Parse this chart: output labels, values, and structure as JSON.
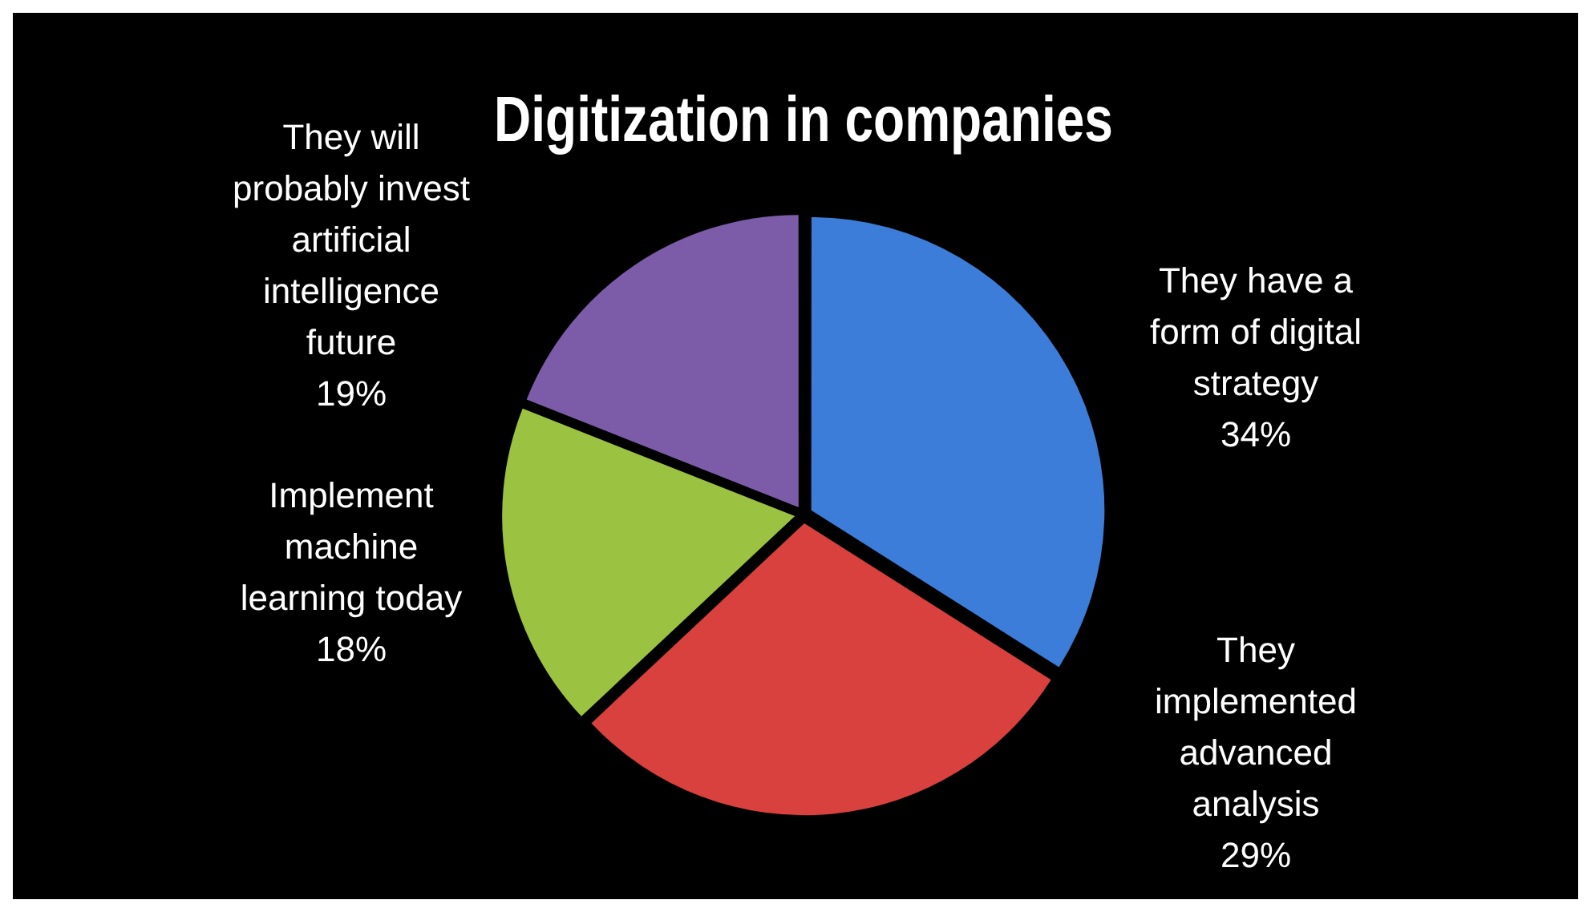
{
  "chart_data": {
    "type": "pie",
    "title": "Digitization in companies",
    "categories": [
      "They have a form of digital strategy",
      "They implemented advanced analysis",
      "Implement machine learning today",
      "They will probably invest artificial intelligence future"
    ],
    "values": [
      34,
      29,
      18,
      19
    ],
    "colors": [
      "#3b7dd8",
      "#d8413e",
      "#9bc240",
      "#7c5ca8"
    ],
    "value_labels": [
      "34%",
      "29%",
      "18%",
      "19%"
    ],
    "legend": false
  }
}
